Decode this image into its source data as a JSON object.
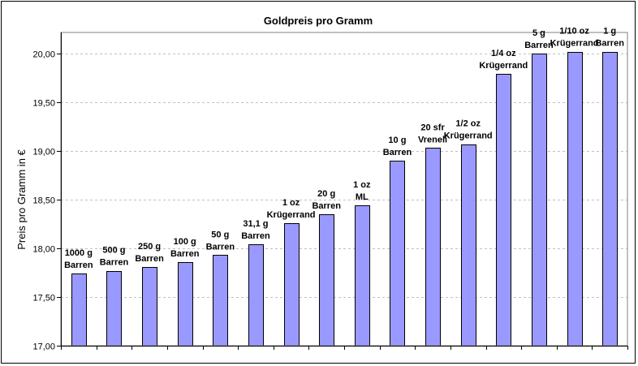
{
  "chart_data": {
    "type": "bar",
    "title": "Goldpreis pro Gramm",
    "xlabel": "",
    "ylabel": "Preis pro Gramm in €",
    "ylim": [
      17.0,
      20.0
    ],
    "yticks": [
      17.0,
      17.5,
      18.0,
      18.5,
      19.0,
      19.5,
      20.0
    ],
    "yticklabels": [
      "17,00",
      "17,50",
      "18,00",
      "18,50",
      "19,00",
      "19,50",
      "20,00"
    ],
    "grid": "horizontal dashed",
    "legend": "none",
    "colors": {
      "bar": "#9999ff",
      "bar_edge": "#000000",
      "grid": "#c0c0c0",
      "plot_border": "#808080"
    },
    "categories": [
      "1000 g Barren",
      "500 g Barren",
      "250 g Barren",
      "100 g Barren",
      "50 g Barren",
      "31,1 g Barren",
      "1 oz Krügerrand",
      "20 g Barren",
      "1 oz ML",
      "10 g Barren",
      "20 sfr Vreneli",
      "1/2 oz Krügerrand",
      "1/4 oz Krügerrand",
      "5 g Barren",
      "1/10 oz Krügerrand",
      "1 g Barren"
    ],
    "label_lines": [
      [
        "1000 g",
        "Barren"
      ],
      [
        "500 g",
        "Barren"
      ],
      [
        "250 g",
        "Barren"
      ],
      [
        "100 g",
        "Barren"
      ],
      [
        "50 g",
        "Barren"
      ],
      [
        "31,1 g",
        "Barren"
      ],
      [
        "1 oz",
        "Krügerrand"
      ],
      [
        "20 g",
        "Barren"
      ],
      [
        "1 oz",
        "ML"
      ],
      [
        "10 g",
        "Barren"
      ],
      [
        "20 sfr",
        "Vreneli"
      ],
      [
        "1/2 oz",
        "Krügerrand"
      ],
      [
        "1/4 oz",
        "Krügerrand"
      ],
      [
        "5 g",
        "Barren"
      ],
      [
        "1/10 oz",
        "Krügerrand"
      ],
      [
        "1 g",
        "Barren"
      ]
    ],
    "values": [
      17.74,
      17.77,
      17.81,
      17.86,
      17.93,
      18.04,
      18.26,
      18.35,
      18.44,
      18.9,
      19.03,
      19.07,
      19.79,
      20.0,
      20.02,
      20.02
    ]
  }
}
